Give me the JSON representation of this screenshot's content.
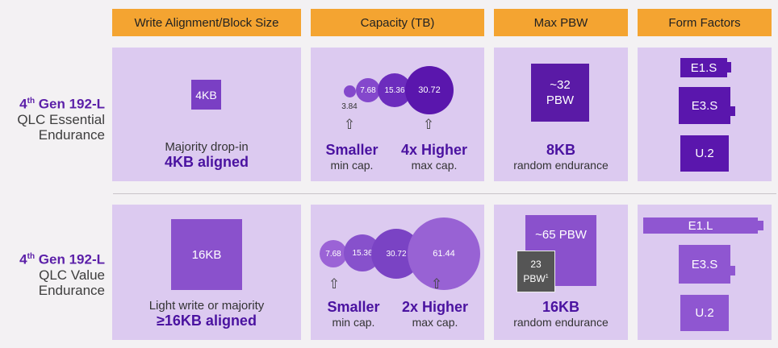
{
  "headers": [
    "Write Alignment/Block Size",
    "Capacity (TB)",
    "Max PBW",
    "Form Factors"
  ],
  "rows": [
    {
      "gen": "4th Gen 192-L",
      "gen_sup": "th",
      "line2": "QLC Essential",
      "line3": "Endurance"
    },
    {
      "gen": "4th Gen 192-L",
      "line2": "QLC Value",
      "line3": "Endurance"
    }
  ],
  "row1": {
    "block_label": "4KB",
    "block_desc": "Majority drop-in",
    "block_bold": "4KB aligned",
    "capacities": [
      "3.84",
      "7.68",
      "15.36",
      "30.72"
    ],
    "cap_left_big": "Smaller",
    "cap_left_small": "min cap.",
    "cap_right_big": "4x Higher",
    "cap_right_small": "max cap.",
    "pbw_line1": "~32",
    "pbw_line2": "PBW",
    "pbw_big": "8KB",
    "pbw_small": "random endurance",
    "ff": [
      "E1.S",
      "E3.S",
      "U.2"
    ]
  },
  "row2": {
    "block_label": "16KB",
    "block_desc": "Light write or majority",
    "block_bold": "≥16KB aligned",
    "capacities": [
      "7.68",
      "15.36",
      "30.72",
      "61.44"
    ],
    "cap_left_big": "Smaller",
    "cap_left_small": "min cap.",
    "cap_right_big": "2x Higher",
    "cap_right_small": "max cap.",
    "pbw_big_box": "~65 PBW",
    "pbw_small_box_1": "23",
    "pbw_small_box_2": "PBW",
    "pbw_small_box_sup": "1",
    "pbw_big": "16KB",
    "pbw_small": "random endurance",
    "ff": [
      "E1.L",
      "E3.S",
      "U.2"
    ]
  },
  "colors": {
    "header": "#f4a431",
    "cell": "#dccaf0",
    "accent": "#5b1fa8"
  },
  "icons": [
    "arrow-up-icon"
  ]
}
